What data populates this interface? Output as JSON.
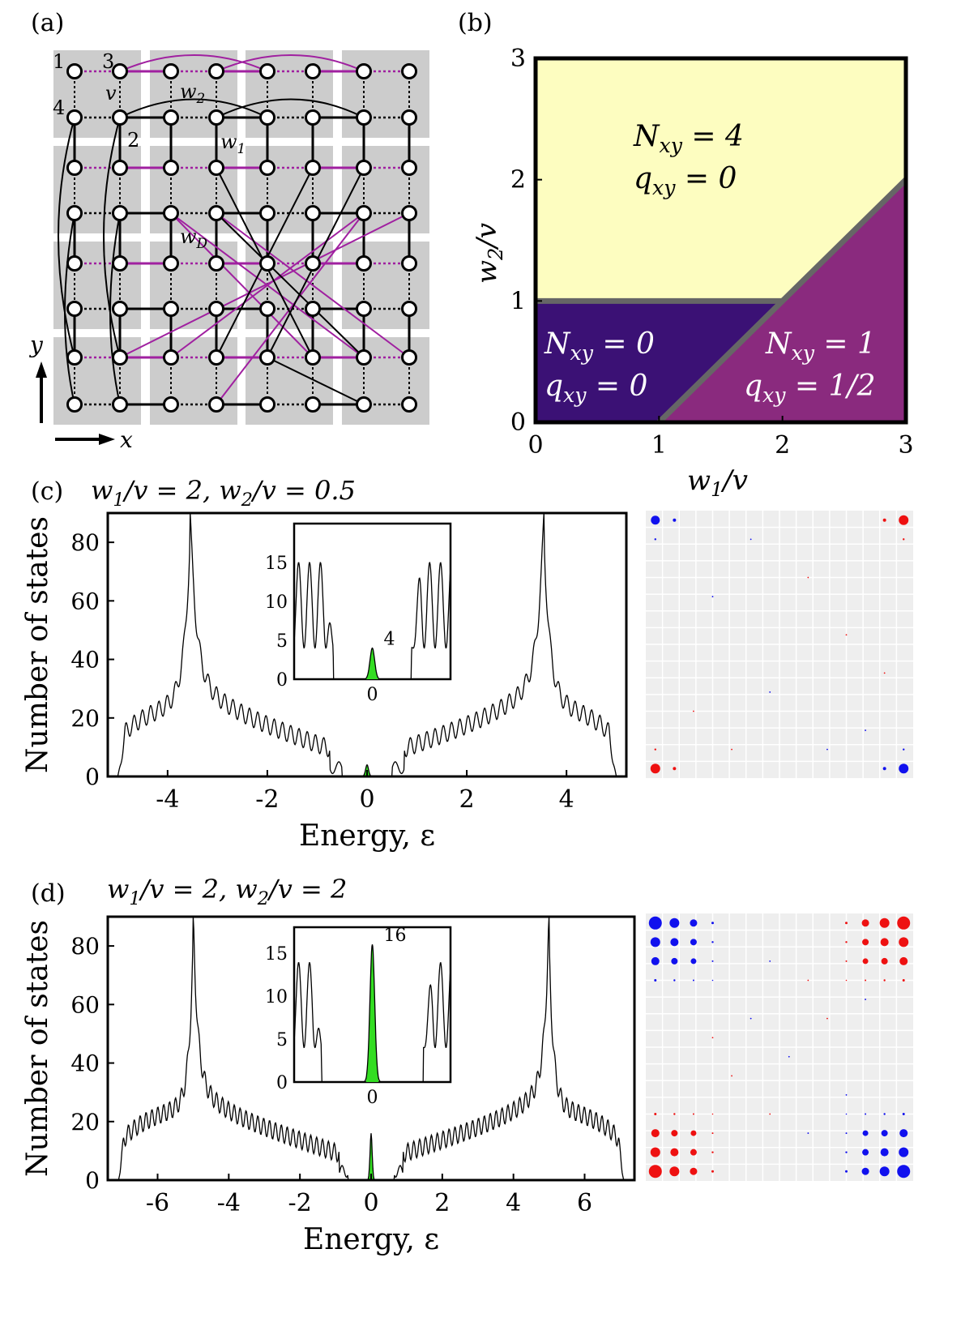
{
  "panel_a": {
    "label": "(a)",
    "site_labels": [
      "1",
      "3",
      "4",
      "2"
    ],
    "hopping_labels": {
      "v": "v",
      "w1": "w1",
      "w2": "w2",
      "wD": "wD"
    },
    "axis_x": "x",
    "axis_y": "y",
    "colors": {
      "magenta": "#a020a0",
      "cell": "#cccccc",
      "black": "#000000"
    }
  },
  "panel_b": {
    "label": "(b)",
    "chart_data": {
      "type": "heatmap",
      "xlabel": "w1/v",
      "ylabel": "w2/v",
      "xlim": [
        0,
        3
      ],
      "ylim": [
        0,
        3
      ],
      "xticks": [
        "0",
        "1",
        "2",
        "3"
      ],
      "yticks": [
        "0",
        "1",
        "2",
        "3"
      ],
      "boundaries": [
        {
          "from": [
            0,
            1
          ],
          "to": [
            2,
            1
          ]
        },
        {
          "from": [
            1,
            0
          ],
          "to": [
            3,
            2
          ]
        }
      ],
      "regions": [
        {
          "N": "4",
          "q": "0",
          "color": "#fdfdc0"
        },
        {
          "N": "0",
          "q": "0",
          "color": "#3b1175"
        },
        {
          "N": "1",
          "q": "1/2",
          "color": "#8a2a7e"
        }
      ]
    }
  },
  "panel_c": {
    "label": "(c)",
    "title_params": {
      "w1": "2",
      "w2": "0.5"
    },
    "chart_data": {
      "type": "line",
      "xlabel": "Energy, ε",
      "ylabel": "Number of states",
      "xlim": [
        -5.2,
        5.2
      ],
      "ylim": [
        0,
        90
      ],
      "xticks": [
        "-4",
        "-2",
        "0",
        "2",
        "4"
      ],
      "xtick_values": [
        -4,
        -2,
        0,
        2,
        4
      ],
      "yticks": [
        "0",
        "20",
        "40",
        "60",
        "80"
      ],
      "ytick_values": [
        0,
        20,
        40,
        60,
        80
      ],
      "band_edge": 5.0,
      "van_hove": 3.55,
      "gap": 0.5,
      "zero_mode_peak": 4,
      "inset": {
        "xlim": [
          -1.0,
          1.0
        ],
        "ylim": [
          0,
          20
        ],
        "yticks": [
          "0",
          "5",
          "10",
          "15"
        ],
        "ytick_values": [
          0,
          5,
          10,
          15
        ],
        "xticks": [
          "0"
        ],
        "peak_label": "4"
      }
    }
  },
  "panel_d": {
    "label": "(d)",
    "title_params": {
      "w1": "2",
      "w2": "2"
    },
    "chart_data": {
      "type": "line",
      "xlabel": "Energy, ε",
      "ylabel": "Number of states",
      "xlim": [
        -7.4,
        7.4
      ],
      "ylim": [
        0,
        90
      ],
      "xticks": [
        "-6",
        "-4",
        "-2",
        "0",
        "2",
        "4",
        "6"
      ],
      "xtick_values": [
        -6,
        -4,
        -2,
        0,
        2,
        4,
        6
      ],
      "yticks": [
        "0",
        "20",
        "40",
        "60",
        "80"
      ],
      "ytick_values": [
        0,
        20,
        40,
        60,
        80
      ],
      "band_edge": 7.1,
      "van_hove": 5.0,
      "gap": 0.65,
      "zero_mode_peak": 16,
      "inset": {
        "xlim": [
          -1.0,
          1.0
        ],
        "ylim": [
          0,
          18
        ],
        "yticks": [
          "0",
          "5",
          "10",
          "15"
        ],
        "ytick_values": [
          0,
          5,
          10,
          15
        ],
        "xticks": [
          "0"
        ],
        "peak_label": "16"
      }
    }
  },
  "colors": {
    "green": "#33dd22",
    "red": "#ee1111",
    "blue": "#1111ee",
    "grid_bg": "#eeeeee"
  }
}
